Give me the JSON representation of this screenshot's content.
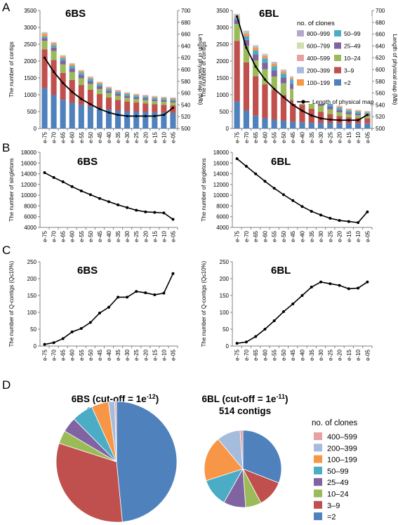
{
  "panel_letters": [
    "A",
    "B",
    "C",
    "D"
  ],
  "colors": {
    "=2": "#4f81bd",
    "3–9": "#c0504d",
    "10–24": "#9bbb59",
    "25–49": "#8064a2",
    "50–99": "#4bacc6",
    "100–199": "#f79646",
    "200–399": "#a6bcdc",
    "400–599": "#e6a1a0",
    "600–799": "#cfdfaf",
    "800–999": "#b6a8cb",
    "line": "#000000"
  },
  "legend_A": {
    "title": "no. of clones",
    "items": [
      "800–999",
      "50–99",
      "600–799",
      "25–49",
      "400–599",
      "10–24",
      "200–399",
      "3–9",
      "100–199",
      "=2"
    ],
    "line_label": "Length of physical map"
  },
  "legend_D": {
    "title": "no. of clones",
    "items": [
      "400–599",
      "200–399",
      "100–199",
      "50–99",
      "25–49",
      "10–24",
      "3–9",
      "=2"
    ]
  },
  "chart_data": [
    {
      "id": "A-6BS",
      "type": "bar",
      "stacked": true,
      "title": "6BS",
      "ylabel": "The number of contigs",
      "y2label": "Length of physical map (Mb)",
      "ylim": [
        0,
        3500
      ],
      "y2lim": [
        500,
        700
      ],
      "yticks": [
        0,
        500,
        1000,
        1500,
        2000,
        2500,
        3000,
        3500
      ],
      "y2ticks": [
        500,
        520,
        540,
        560,
        580,
        600,
        620,
        640,
        660,
        680,
        700
      ],
      "categories": [
        "e-75",
        "e-70",
        "e-65",
        "e-60",
        "e-55",
        "e-50",
        "e-45",
        "e-40",
        "e-35",
        "e-30",
        "e-25",
        "e-20",
        "e-15",
        "e-10",
        "e-05"
      ],
      "series": [
        {
          "name": "=2",
          "values": [
            1200,
            1000,
            850,
            760,
            700,
            650,
            600,
            560,
            530,
            510,
            500,
            490,
            480,
            470,
            460
          ]
        },
        {
          "name": "3–9",
          "values": [
            1150,
            1030,
            800,
            680,
            590,
            500,
            420,
            360,
            320,
            290,
            270,
            255,
            240,
            230,
            225
          ]
        },
        {
          "name": "10–24",
          "values": [
            250,
            270,
            250,
            230,
            200,
            170,
            150,
            130,
            115,
            105,
            100,
            95,
            90,
            90,
            85
          ]
        },
        {
          "name": "25–49",
          "values": [
            80,
            100,
            110,
            110,
            95,
            85,
            80,
            70,
            65,
            60,
            55,
            55,
            50,
            50,
            50
          ]
        },
        {
          "name": "50–99",
          "values": [
            50,
            70,
            75,
            80,
            75,
            70,
            65,
            60,
            55,
            55,
            50,
            50,
            50,
            45,
            45
          ]
        },
        {
          "name": "100–199",
          "values": [
            80,
            60,
            55,
            50,
            45,
            40,
            40,
            35,
            35,
            30,
            30,
            30,
            30,
            30,
            30
          ]
        },
        {
          "name": "200–399",
          "values": [
            30,
            20,
            20,
            15,
            15,
            15,
            15,
            10,
            10,
            10,
            10,
            10,
            10,
            10,
            10
          ]
        },
        {
          "name": "400–599",
          "values": [
            10,
            5,
            5,
            5,
            5,
            5,
            5,
            5,
            5,
            5,
            5,
            5,
            5,
            5,
            5
          ]
        },
        {
          "name": "600–799",
          "values": [
            5,
            5,
            5,
            5,
            5,
            5,
            5,
            5,
            5,
            5,
            5,
            5,
            5,
            5,
            5
          ]
        },
        {
          "name": "800–999",
          "values": [
            5,
            5,
            5,
            5,
            5,
            5,
            5,
            5,
            5,
            5,
            5,
            5,
            5,
            5,
            5
          ]
        }
      ],
      "line": {
        "name": "Length of physical map",
        "axis": "y2",
        "values": [
          620,
          596,
          577,
          562,
          550,
          541,
          533,
          527,
          523,
          521,
          521,
          521,
          521,
          523,
          535
        ]
      }
    },
    {
      "id": "A-6BL",
      "type": "bar",
      "stacked": true,
      "title": "6BL",
      "ylabel": "The number of contigs",
      "y2label": "Length of physical map (Mb)",
      "ylim": [
        0,
        3500
      ],
      "y2lim": [
        500,
        700
      ],
      "yticks": [
        0,
        500,
        1000,
        1500,
        2000,
        2500,
        3000,
        3500
      ],
      "y2ticks": [
        500,
        520,
        540,
        560,
        580,
        600,
        620,
        640,
        660,
        680,
        700
      ],
      "categories": [
        "e-75",
        "e-70",
        "e-65",
        "e-60",
        "e-55",
        "e-50",
        "e-45",
        "e-40",
        "e-35",
        "e-30",
        "e-25",
        "e-20",
        "e-15",
        "e-10",
        "e-05"
      ],
      "series": [
        {
          "name": "=2",
          "values": [
            800,
            530,
            380,
            300,
            260,
            230,
            200,
            180,
            165,
            160,
            155,
            150,
            150,
            150,
            150
          ]
        },
        {
          "name": "3–9",
          "values": [
            1800,
            1430,
            1170,
            1010,
            880,
            760,
            650,
            520,
            420,
            330,
            270,
            220,
            180,
            160,
            150
          ]
        },
        {
          "name": "10–24",
          "values": [
            500,
            490,
            470,
            450,
            400,
            350,
            320,
            270,
            230,
            180,
            140,
            110,
            90,
            80,
            70
          ]
        },
        {
          "name": "25–49",
          "values": [
            120,
            180,
            180,
            190,
            180,
            170,
            160,
            150,
            130,
            110,
            90,
            75,
            60,
            50,
            45
          ]
        },
        {
          "name": "50–99",
          "values": [
            60,
            100,
            120,
            130,
            130,
            120,
            120,
            110,
            100,
            90,
            75,
            60,
            55,
            50,
            45
          ]
        },
        {
          "name": "100–199",
          "values": [
            40,
            80,
            80,
            70,
            70,
            60,
            50,
            50,
            50,
            40,
            40,
            35,
            30,
            30,
            30
          ]
        },
        {
          "name": "200–399",
          "values": [
            30,
            40,
            30,
            30,
            25,
            25,
            20,
            20,
            20,
            20,
            20,
            15,
            15,
            15,
            15
          ]
        },
        {
          "name": "400–599",
          "values": [
            20,
            20,
            20,
            15,
            15,
            15,
            10,
            10,
            10,
            10,
            10,
            5,
            5,
            5,
            5
          ]
        },
        {
          "name": "600–799",
          "values": [
            15,
            15,
            10,
            10,
            10,
            10,
            10,
            10,
            5,
            5,
            5,
            5,
            5,
            5,
            5
          ]
        },
        {
          "name": "800–999",
          "values": [
            15,
            15,
            10,
            10,
            10,
            10,
            10,
            10,
            5,
            5,
            5,
            5,
            5,
            5,
            5
          ]
        }
      ],
      "line": {
        "name": "Length of physical map",
        "axis": "y2",
        "values": [
          690,
          637,
          605,
          583,
          567,
          553,
          540,
          530,
          522,
          517,
          515,
          514,
          514,
          514,
          523
        ]
      }
    },
    {
      "id": "B-6BS",
      "type": "line",
      "title": "6BS",
      "ylabel": "The number of singletons",
      "ylim": [
        4000,
        18000
      ],
      "yticks": [
        4000,
        6000,
        8000,
        10000,
        12000,
        14000,
        16000,
        18000
      ],
      "categories": [
        "e-75",
        "e-70",
        "e-65",
        "e-60",
        "e-55",
        "e-50",
        "e-45",
        "e-40",
        "e-35",
        "e-30",
        "e-25",
        "e-20",
        "e-15",
        "e-10",
        "e-05"
      ],
      "values": [
        14200,
        13300,
        12500,
        11600,
        10800,
        10100,
        9400,
        8800,
        8200,
        7700,
        7200,
        6900,
        6800,
        6700,
        5500
      ]
    },
    {
      "id": "B-6BL",
      "type": "line",
      "title": "6BL",
      "ylabel": "The number of singletons",
      "ylim": [
        4000,
        18000
      ],
      "yticks": [
        4000,
        6000,
        8000,
        10000,
        12000,
        14000,
        16000,
        18000
      ],
      "categories": [
        "e-75",
        "e-70",
        "e-65",
        "e-60",
        "e-55",
        "e-50",
        "e-45",
        "e-40",
        "e-35",
        "e-30",
        "e-25",
        "e-20",
        "e-15",
        "e-10",
        "e-05"
      ],
      "values": [
        16800,
        15400,
        14000,
        12600,
        11300,
        10100,
        9000,
        7900,
        7000,
        6300,
        5700,
        5300,
        5100,
        4900,
        6900
      ]
    },
    {
      "id": "C-6BS",
      "type": "line",
      "title": "6BS",
      "ylabel": "The number of Q-contigs (Q≤10%)",
      "ylim": [
        0,
        250
      ],
      "yticks": [
        0,
        50,
        100,
        150,
        200,
        250
      ],
      "categories": [
        "e-75",
        "e-70",
        "e-65",
        "e-60",
        "e-55",
        "e-50",
        "e-45",
        "e-40",
        "e-35",
        "e-30",
        "e-25",
        "e-20",
        "e-15",
        "e-10",
        "e-05"
      ],
      "values": [
        5,
        10,
        22,
        42,
        52,
        70,
        98,
        115,
        145,
        145,
        162,
        158,
        152,
        157,
        215
      ]
    },
    {
      "id": "C-6BL",
      "type": "line",
      "title": "6BL",
      "ylabel": "The number of Q-contigs (Q≤10%)",
      "ylim": [
        0,
        250
      ],
      "yticks": [
        0,
        50,
        100,
        150,
        200,
        250
      ],
      "categories": [
        "e-75",
        "e-70",
        "e-65",
        "e-60",
        "e-55",
        "e-50",
        "e-45",
        "e-40",
        "e-35",
        "e-30",
        "e-25",
        "e-20",
        "e-15",
        "e-10",
        "e-05"
      ],
      "values": [
        8,
        12,
        28,
        50,
        75,
        102,
        125,
        150,
        175,
        190,
        185,
        180,
        170,
        172,
        190
      ]
    },
    {
      "id": "D-6BS",
      "type": "pie",
      "title": "6BS (cut-off = 1e",
      "title_sup": "-12",
      "title_end": ")",
      "subtitle": "1069 contigs",
      "slices": [
        {
          "label": "=2",
          "value": 518
        },
        {
          "label": "3–9",
          "value": 337
        },
        {
          "label": "10–24",
          "value": 38
        },
        {
          "label": "25–49",
          "value": 43
        },
        {
          "label": "50–99",
          "value": 61
        },
        {
          "label": "100–199",
          "value": 49
        },
        {
          "label": "200–399",
          "value": 18
        },
        {
          "label": "400–599",
          "value": 5
        }
      ]
    },
    {
      "id": "D-6BL",
      "type": "pie",
      "title": "6BL (cut-off = 1e",
      "title_sup": "-11",
      "title_end": ")",
      "subtitle": "514 contigs",
      "slices": [
        {
          "label": "=2",
          "value": 159
        },
        {
          "label": "3–9",
          "value": 58
        },
        {
          "label": "10–24",
          "value": 34
        },
        {
          "label": "25–49",
          "value": 48
        },
        {
          "label": "50–99",
          "value": 61
        },
        {
          "label": "100–199",
          "value": 97
        },
        {
          "label": "200–399",
          "value": 51
        },
        {
          "label": "400–599",
          "value": 6
        }
      ]
    }
  ]
}
